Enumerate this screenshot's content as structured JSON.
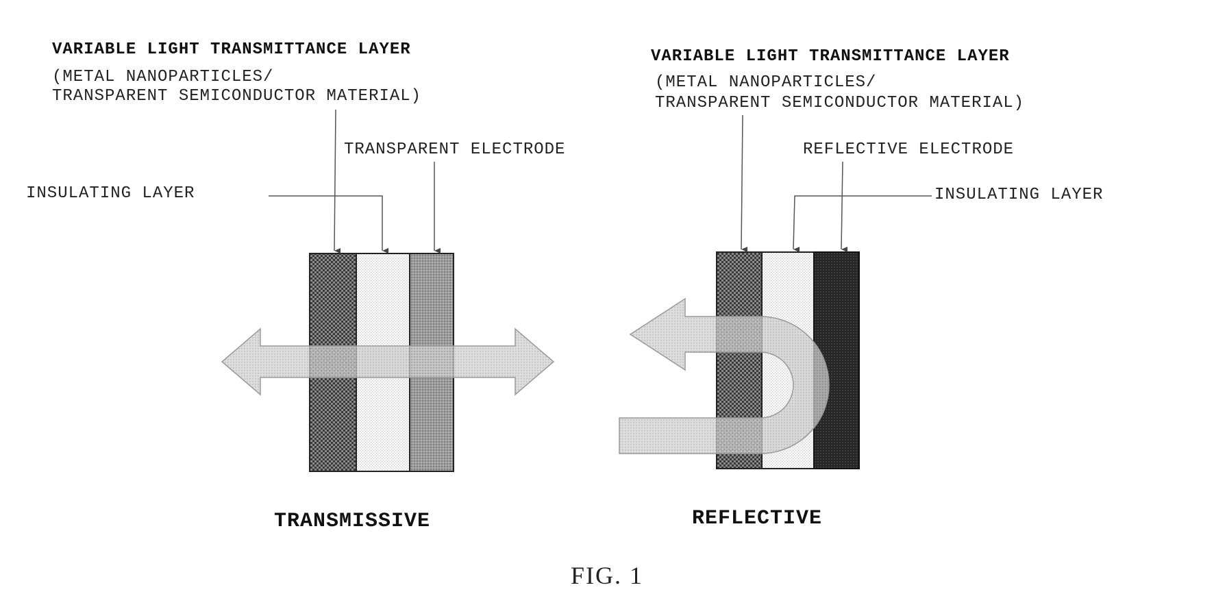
{
  "transmissive": {
    "title": "VARIABLE LIGHT TRANSMITTANCE LAYER",
    "subtitle_line1": "(METAL NANOPARTICLES/",
    "subtitle_line2": "TRANSPARENT SEMICONDUCTOR MATERIAL)",
    "electrode_label": "TRANSPARENT ELECTRODE",
    "insulating_label": "INSULATING LAYER",
    "caption": "TRANSMISSIVE"
  },
  "reflective": {
    "title": "VARIABLE LIGHT TRANSMITTANCE LAYER",
    "subtitle_line1": "(METAL NANOPARTICLES/",
    "subtitle_line2": "TRANSPARENT SEMICONDUCTOR MATERIAL)",
    "electrode_label": "REFLECTIVE ELECTRODE",
    "insulating_label": "INSULATING LAYER",
    "caption": "REFLECTIVE"
  },
  "figure_label": "FIG. 1",
  "colors": {
    "variable_layer": "#6e6e6e",
    "insulating_layer": "#f2f2f2",
    "transparent_electrode": "#9a9a9a",
    "reflective_electrode": "#2a2a2a",
    "light_arrow": "#c4c4c4"
  }
}
